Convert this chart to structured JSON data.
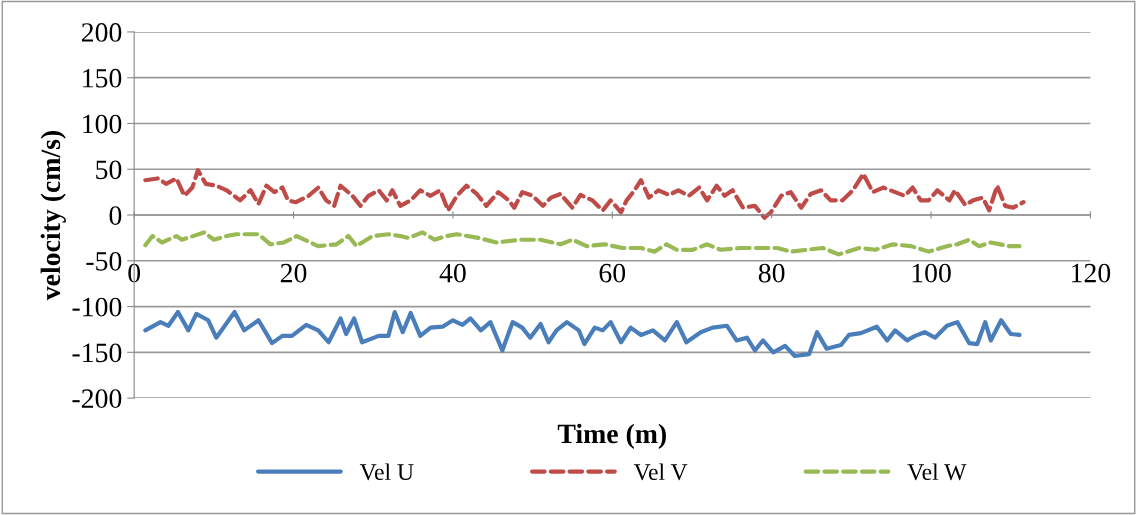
{
  "chart_data": {
    "type": "line",
    "xlabel": "Time (m)",
    "ylabel": "velocity (cm/s)",
    "xlim": [
      0,
      120
    ],
    "xticks": [
      0,
      20,
      40,
      60,
      80,
      100,
      120
    ],
    "ylim": [
      -200,
      200
    ],
    "yticks": [
      -200,
      -150,
      -100,
      -50,
      0,
      50,
      100,
      150,
      200
    ],
    "grid": "y",
    "legend": "bottom",
    "series": [
      {
        "name": "Vel U",
        "color": "#4a7ebb",
        "line_style": "solid",
        "x": [
          1.4,
          3.3,
          4.3,
          5.5,
          6.8,
          7.8,
          9.3,
          10.3,
          12.6,
          13.8,
          15.6,
          17.3,
          18.6,
          19.8,
          21.6,
          23.1,
          24.4,
          25.9,
          26.6,
          27.6,
          28.6,
          30.7,
          31.9,
          32.7,
          33.7,
          34.7,
          35.9,
          37.2,
          38.7,
          40,
          41.2,
          42.2,
          43.5,
          44.7,
          46.2,
          47.5,
          48.7,
          49.7,
          51,
          52,
          53,
          54.3,
          55.8,
          56.5,
          57.8,
          58.8,
          59.8,
          61.1,
          62.3,
          63.6,
          65.1,
          66.6,
          68.1,
          69.3,
          71.1,
          72.6,
          74.4,
          75.6,
          76.9,
          77.9,
          78.9,
          80.2,
          81.7,
          82.9,
          84.7,
          85.7,
          86.9,
          88.7,
          89.7,
          91.2,
          93.2,
          94.5,
          95.5,
          97,
          98,
          99.2,
          100.5,
          102,
          103.3,
          104.8,
          105.8,
          106.8,
          107.5,
          108.8,
          110,
          111.1
        ],
        "values": [
          -126,
          -117,
          -121,
          -106,
          -126,
          -108,
          -115,
          -134,
          -106,
          -126,
          -115,
          -140,
          -132,
          -132,
          -120,
          -126,
          -139,
          -113,
          -130,
          -113,
          -139,
          -132,
          -132,
          -106,
          -128,
          -107,
          -132,
          -123,
          -122,
          -115,
          -120,
          -113,
          -126,
          -117,
          -148,
          -117,
          -123,
          -134,
          -119,
          -139,
          -126,
          -117,
          -126,
          -141,
          -123,
          -126,
          -117,
          -139,
          -123,
          -131,
          -126,
          -137,
          -117,
          -139,
          -128,
          -123,
          -121,
          -137,
          -134,
          -148,
          -137,
          -150,
          -143,
          -154,
          -152,
          -128,
          -146,
          -142,
          -131,
          -129,
          -122,
          -137,
          -126,
          -137,
          -132,
          -128,
          -134,
          -121,
          -117,
          -140,
          -141,
          -117,
          -137,
          -115,
          -130,
          -131
        ]
      },
      {
        "name": "Vel V",
        "color": "#be4b48",
        "line_style": "dashed",
        "x": [
          1.4,
          3,
          4,
          5.3,
          6.3,
          7.3,
          8,
          9,
          10.3,
          11.6,
          13.3,
          14.6,
          15.6,
          16.6,
          17.6,
          18.6,
          19.3,
          20.3,
          21.9,
          23.1,
          24.1,
          25.1,
          25.9,
          27.4,
          28.4,
          29.4,
          30.7,
          31.7,
          32.4,
          33.4,
          34.7,
          35.9,
          37.2,
          38.4,
          39.4,
          40.5,
          41.7,
          43,
          44.2,
          45.7,
          47,
          47.7,
          48.7,
          50,
          51.3,
          52.3,
          53.5,
          55,
          56,
          57.5,
          58.8,
          59.8,
          61.1,
          61.8,
          62.8,
          63.6,
          64.6,
          65.8,
          67.1,
          68.3,
          69.6,
          70.9,
          71.9,
          73.1,
          74.1,
          75.1,
          76.4,
          77.9,
          79.1,
          79.9,
          81.2,
          82.4,
          83.7,
          84.9,
          86.2,
          87.4,
          88.9,
          90.2,
          91.5,
          92.7,
          94,
          95.5,
          96.7,
          97.7,
          98.7,
          99.7,
          100.8,
          102.3,
          103,
          104.3,
          105.3,
          106.5,
          107.3,
          108.3,
          109.3,
          110.3,
          111.6
        ],
        "values": [
          38,
          40,
          34,
          40,
          21,
          30,
          49,
          34,
          32,
          27,
          16,
          27,
          12,
          32,
          25,
          30,
          16,
          14,
          21,
          30,
          16,
          10,
          32,
          21,
          10,
          21,
          27,
          16,
          27,
          10,
          16,
          27,
          21,
          27,
          5,
          21,
          32,
          23,
          10,
          25,
          16,
          8,
          25,
          21,
          10,
          19,
          23,
          8,
          22,
          16,
          5,
          16,
          3,
          16,
          27,
          38,
          19,
          27,
          22,
          27,
          21,
          30,
          16,
          32,
          21,
          27,
          8,
          10,
          -3,
          3,
          21,
          25,
          8,
          23,
          27,
          16,
          16,
          27,
          45,
          25,
          30,
          25,
          21,
          30,
          16,
          16,
          27,
          16,
          27,
          11,
          16,
          19,
          5,
          32,
          10,
          8,
          14
        ]
      },
      {
        "name": "Vel W",
        "color": "#98b954",
        "line_style": "dashed",
        "x": [
          1.4,
          2.3,
          3.5,
          5.3,
          6,
          8.8,
          10,
          11.6,
          12.8,
          15.6,
          17.1,
          18.8,
          20.4,
          23.1,
          25.4,
          26.9,
          27.9,
          29.9,
          31.9,
          33.4,
          34.4,
          36.2,
          37.7,
          39.2,
          40.5,
          43.2,
          45.5,
          48.5,
          51,
          53.5,
          55,
          56.8,
          59,
          61.3,
          63.6,
          65.3,
          66.8,
          68.1,
          70.1,
          71.9,
          73.6,
          76.1,
          78.6,
          80.7,
          82.4,
          86.4,
          88.4,
          91,
          93,
          95.2,
          97.5,
          99.7,
          102,
          103.3,
          104.8,
          106,
          107.5,
          109.8,
          111.1
        ],
        "values": [
          -33,
          -23,
          -30,
          -23,
          -27,
          -19,
          -27,
          -23,
          -21,
          -21,
          -32,
          -30,
          -23,
          -34,
          -32,
          -23,
          -34,
          -23,
          -21,
          -23,
          -25,
          -19,
          -27,
          -23,
          -21,
          -25,
          -30,
          -27,
          -27,
          -32,
          -27,
          -34,
          -32,
          -36,
          -36,
          -40,
          -32,
          -38,
          -38,
          -32,
          -38,
          -36,
          -36,
          -36,
          -40,
          -36,
          -43,
          -36,
          -38,
          -32,
          -34,
          -40,
          -34,
          -32,
          -27,
          -34,
          -30,
          -34,
          -34
        ]
      }
    ]
  }
}
